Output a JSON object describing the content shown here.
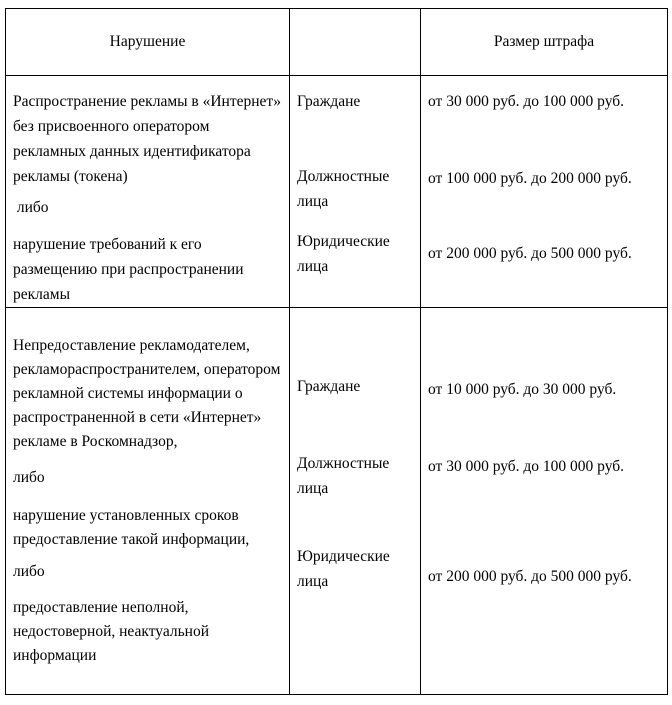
{
  "table": {
    "header": {
      "violation": "Нарушение",
      "subject": "",
      "fine": "Размер штрафа"
    },
    "rows": [
      {
        "violation": [
          "Распространение рекламы в «Интернет» без присвоенного оператором рекламных данных идентификатора рекламы (токена)",
          " либо",
          "нарушение требований к его размещению при распространении рекламы"
        ],
        "subjects": [
          "Граждане",
          "Должностные лица",
          "Юридические лица"
        ],
        "fines": [
          "от 30 000 руб. до 100 000 руб.",
          "от 100 000 руб. до 200 000 руб.",
          "от 200 000 руб. до 500 000 руб."
        ]
      },
      {
        "violation": [
          "Непредоставление рекламодателем, рекламораспространителем, оператором рекламной системы информации о распространенной в сети «Интернет» рекламе в Роскомнадзор,",
          "либо",
          "нарушение установленных сроков предоставление такой информации,",
          "либо",
          "предоставление неполной, недостоверной, неактуальной информации"
        ],
        "subjects": [
          "Граждане",
          "Должностные лица",
          "Юридические лица"
        ],
        "fines": [
          "от 10 000 руб. до 30 000 руб.",
          "от 30 000 руб. до 100 000 руб.",
          "от 200 000 руб. до 500 000 руб."
        ]
      }
    ]
  },
  "colors": {
    "text": "#000000",
    "border": "#000000",
    "background": "#ffffff"
  }
}
